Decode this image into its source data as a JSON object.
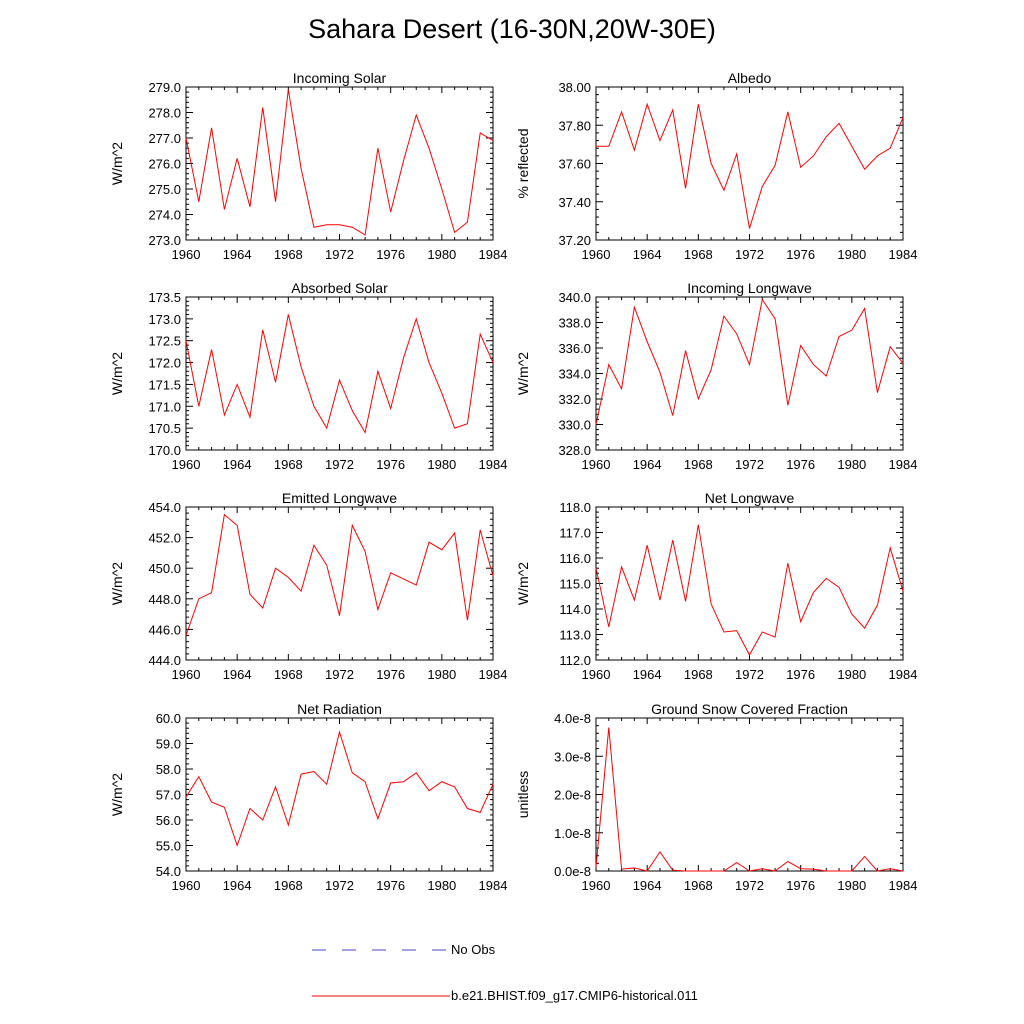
{
  "title": "Sahara Desert (16-30N,20W-30E)",
  "colors": {
    "model": "#ff0000",
    "obs": "#4444cc",
    "axis": "#000000"
  },
  "legend": {
    "obs_label": "No Obs",
    "model_label": "b.e21.BHIST.f09_g17.CMIP6-historical.011"
  },
  "chart_data": [
    {
      "type": "line",
      "title": "Incoming Solar",
      "ylabel": "W/m^2",
      "xlim": [
        1960,
        1984
      ],
      "ylim": [
        273.0,
        279.0
      ],
      "yticks": [
        "273.0",
        "274.0",
        "275.0",
        "276.0",
        "277.0",
        "278.0",
        "279.0"
      ],
      "xticks": [
        "1960",
        "1964",
        "1968",
        "1972",
        "1976",
        "1980",
        "1984"
      ],
      "series": [
        {
          "x": [
            1960,
            1961,
            1962,
            1963,
            1964,
            1965,
            1966,
            1967,
            1968,
            1969,
            1970,
            1971,
            1972,
            1973,
            1974,
            1975,
            1976,
            1977,
            1978,
            1979,
            1980,
            1981,
            1982,
            1983,
            1984
          ],
          "values": [
            277.0,
            274.5,
            277.4,
            274.2,
            276.2,
            274.3,
            278.2,
            274.5,
            278.9,
            275.8,
            273.5,
            273.6,
            273.6,
            273.5,
            273.2,
            276.6,
            274.1,
            276.1,
            277.9,
            276.6,
            275.0,
            273.3,
            273.7,
            277.2,
            276.9
          ]
        }
      ]
    },
    {
      "type": "line",
      "title": "Albedo",
      "ylabel": "% reflected",
      "xlim": [
        1960,
        1984
      ],
      "ylim": [
        37.2,
        38.0
      ],
      "yticks": [
        "37.20",
        "37.40",
        "37.60",
        "37.80",
        "38.00"
      ],
      "xticks": [
        "1960",
        "1964",
        "1968",
        "1972",
        "1976",
        "1980",
        "1984"
      ],
      "series": [
        {
          "x": [
            1960,
            1961,
            1962,
            1963,
            1964,
            1965,
            1966,
            1967,
            1968,
            1969,
            1970,
            1971,
            1972,
            1973,
            1974,
            1975,
            1976,
            1977,
            1978,
            1979,
            1980,
            1981,
            1982,
            1983,
            1984
          ],
          "values": [
            37.69,
            37.69,
            37.87,
            37.67,
            37.91,
            37.72,
            37.88,
            37.47,
            37.91,
            37.6,
            37.46,
            37.65,
            37.26,
            37.48,
            37.59,
            37.87,
            37.58,
            37.64,
            37.74,
            37.81,
            37.69,
            37.57,
            37.64,
            37.68,
            37.84
          ]
        }
      ]
    },
    {
      "type": "line",
      "title": "Absorbed Solar",
      "ylabel": "W/m^2",
      "xlim": [
        1960,
        1984
      ],
      "ylim": [
        170.0,
        173.5
      ],
      "yticks": [
        "170.0",
        "170.5",
        "171.0",
        "171.5",
        "172.0",
        "172.5",
        "173.0",
        "173.5"
      ],
      "xticks": [
        "1960",
        "1964",
        "1968",
        "1972",
        "1976",
        "1980",
        "1984"
      ],
      "series": [
        {
          "x": [
            1960,
            1961,
            1962,
            1963,
            1964,
            1965,
            1966,
            1967,
            1968,
            1969,
            1970,
            1971,
            1972,
            1973,
            1974,
            1975,
            1976,
            1977,
            1978,
            1979,
            1980,
            1981,
            1982,
            1983,
            1984
          ],
          "values": [
            172.5,
            171.0,
            172.3,
            170.8,
            171.5,
            170.75,
            172.75,
            171.55,
            173.1,
            171.9,
            171.0,
            170.5,
            171.6,
            170.9,
            170.4,
            171.8,
            170.95,
            172.1,
            173.0,
            172.0,
            171.3,
            170.5,
            170.6,
            172.65,
            172.0
          ]
        }
      ]
    },
    {
      "type": "line",
      "title": "Incoming Longwave",
      "ylabel": "W/m^2",
      "xlim": [
        1960,
        1984
      ],
      "ylim": [
        328.0,
        340.0
      ],
      "yticks": [
        "328.0",
        "330.0",
        "332.0",
        "334.0",
        "336.0",
        "338.0",
        "340.0"
      ],
      "xticks": [
        "1960",
        "1964",
        "1968",
        "1972",
        "1976",
        "1980",
        "1984"
      ],
      "series": [
        {
          "x": [
            1960,
            1961,
            1962,
            1963,
            1964,
            1965,
            1966,
            1967,
            1968,
            1969,
            1970,
            1971,
            1972,
            1973,
            1974,
            1975,
            1976,
            1977,
            1978,
            1979,
            1980,
            1981,
            1982,
            1983,
            1984
          ],
          "values": [
            330.0,
            334.7,
            332.8,
            339.2,
            336.5,
            334.1,
            330.7,
            335.8,
            332.0,
            334.3,
            338.5,
            337.1,
            334.7,
            339.8,
            338.3,
            331.5,
            336.2,
            334.7,
            333.8,
            336.9,
            337.4,
            339.1,
            332.5,
            336.1,
            334.8
          ]
        }
      ]
    },
    {
      "type": "line",
      "title": "Emitted Longwave",
      "ylabel": "W/m^2",
      "xlim": [
        1960,
        1984
      ],
      "ylim": [
        444.0,
        454.0
      ],
      "yticks": [
        "444.0",
        "446.0",
        "448.0",
        "450.0",
        "452.0",
        "454.0"
      ],
      "xticks": [
        "1960",
        "1964",
        "1968",
        "1972",
        "1976",
        "1980",
        "1984"
      ],
      "series": [
        {
          "x": [
            1960,
            1961,
            1962,
            1963,
            1964,
            1965,
            1966,
            1967,
            1968,
            1969,
            1970,
            1971,
            1972,
            1973,
            1974,
            1975,
            1976,
            1977,
            1978,
            1979,
            1980,
            1981,
            1982,
            1983,
            1984
          ],
          "values": [
            445.6,
            448.0,
            448.4,
            453.5,
            452.8,
            448.3,
            447.4,
            450.0,
            449.4,
            448.5,
            451.5,
            450.2,
            446.9,
            452.8,
            451.1,
            447.3,
            449.7,
            449.3,
            448.9,
            451.7,
            451.2,
            452.3,
            446.6,
            452.5,
            449.5
          ]
        }
      ]
    },
    {
      "type": "line",
      "title": "Net Longwave",
      "ylabel": "W/m^2",
      "xlim": [
        1960,
        1984
      ],
      "ylim": [
        112.0,
        118.0
      ],
      "yticks": [
        "112.0",
        "113.0",
        "114.0",
        "115.0",
        "116.0",
        "117.0",
        "118.0"
      ],
      "xticks": [
        "1960",
        "1964",
        "1968",
        "1972",
        "1976",
        "1980",
        "1984"
      ],
      "series": [
        {
          "x": [
            1960,
            1961,
            1962,
            1963,
            1964,
            1965,
            1966,
            1967,
            1968,
            1969,
            1970,
            1971,
            1972,
            1973,
            1974,
            1975,
            1976,
            1977,
            1978,
            1979,
            1980,
            1981,
            1982,
            1983,
            1984
          ],
          "values": [
            115.6,
            113.3,
            115.65,
            114.35,
            116.5,
            114.35,
            116.7,
            114.3,
            117.3,
            114.2,
            113.1,
            113.15,
            112.2,
            113.1,
            112.9,
            115.8,
            113.5,
            114.65,
            115.2,
            114.85,
            113.8,
            113.25,
            114.15,
            116.4,
            114.7
          ]
        }
      ]
    },
    {
      "type": "line",
      "title": "Net Radiation",
      "ylabel": "W/m^2",
      "xlim": [
        1960,
        1984
      ],
      "ylim": [
        54.0,
        60.0
      ],
      "yticks": [
        "54.0",
        "55.0",
        "56.0",
        "57.0",
        "58.0",
        "59.0",
        "60.0"
      ],
      "xticks": [
        "1960",
        "1964",
        "1968",
        "1972",
        "1976",
        "1980",
        "1984"
      ],
      "series": [
        {
          "x": [
            1960,
            1961,
            1962,
            1963,
            1964,
            1965,
            1966,
            1967,
            1968,
            1969,
            1970,
            1971,
            1972,
            1973,
            1974,
            1975,
            1976,
            1977,
            1978,
            1979,
            1980,
            1981,
            1982,
            1983,
            1984
          ],
          "values": [
            56.9,
            57.7,
            56.7,
            56.5,
            55.0,
            56.45,
            56.0,
            57.3,
            55.8,
            57.8,
            57.9,
            57.4,
            59.45,
            57.85,
            57.5,
            56.05,
            57.45,
            57.5,
            57.85,
            57.15,
            57.5,
            57.3,
            56.45,
            56.3,
            57.4
          ]
        }
      ]
    },
    {
      "type": "line",
      "title": "Ground Snow Covered Fraction",
      "ylabel": "unitless",
      "xlim": [
        1960,
        1984
      ],
      "ylim": [
        0.0,
        4e-08
      ],
      "yticks": [
        "0.0e-8",
        "1.0e-8",
        "2.0e-8",
        "3.0e-8",
        "4.0e-8"
      ],
      "xticks": [
        "1960",
        "1964",
        "1968",
        "1972",
        "1976",
        "1980",
        "1984"
      ],
      "series": [
        {
          "x": [
            1960,
            1961,
            1962,
            1963,
            1964,
            1965,
            1966,
            1967,
            1968,
            1969,
            1970,
            1971,
            1972,
            1973,
            1974,
            1975,
            1976,
            1977,
            1978,
            1979,
            1980,
            1981,
            1982,
            1983,
            1984
          ],
          "values": [
            1e-09,
            3.75e-08,
            5e-10,
            8e-10,
            0.0,
            5e-09,
            2e-10,
            0.0,
            0.0,
            0.0,
            0.0,
            2.2e-09,
            0.0,
            6e-10,
            0.0,
            2.5e-09,
            6e-10,
            5e-10,
            0.0,
            0.0,
            0.0,
            3.8e-09,
            0.0,
            6e-10,
            0.0
          ]
        }
      ]
    }
  ]
}
